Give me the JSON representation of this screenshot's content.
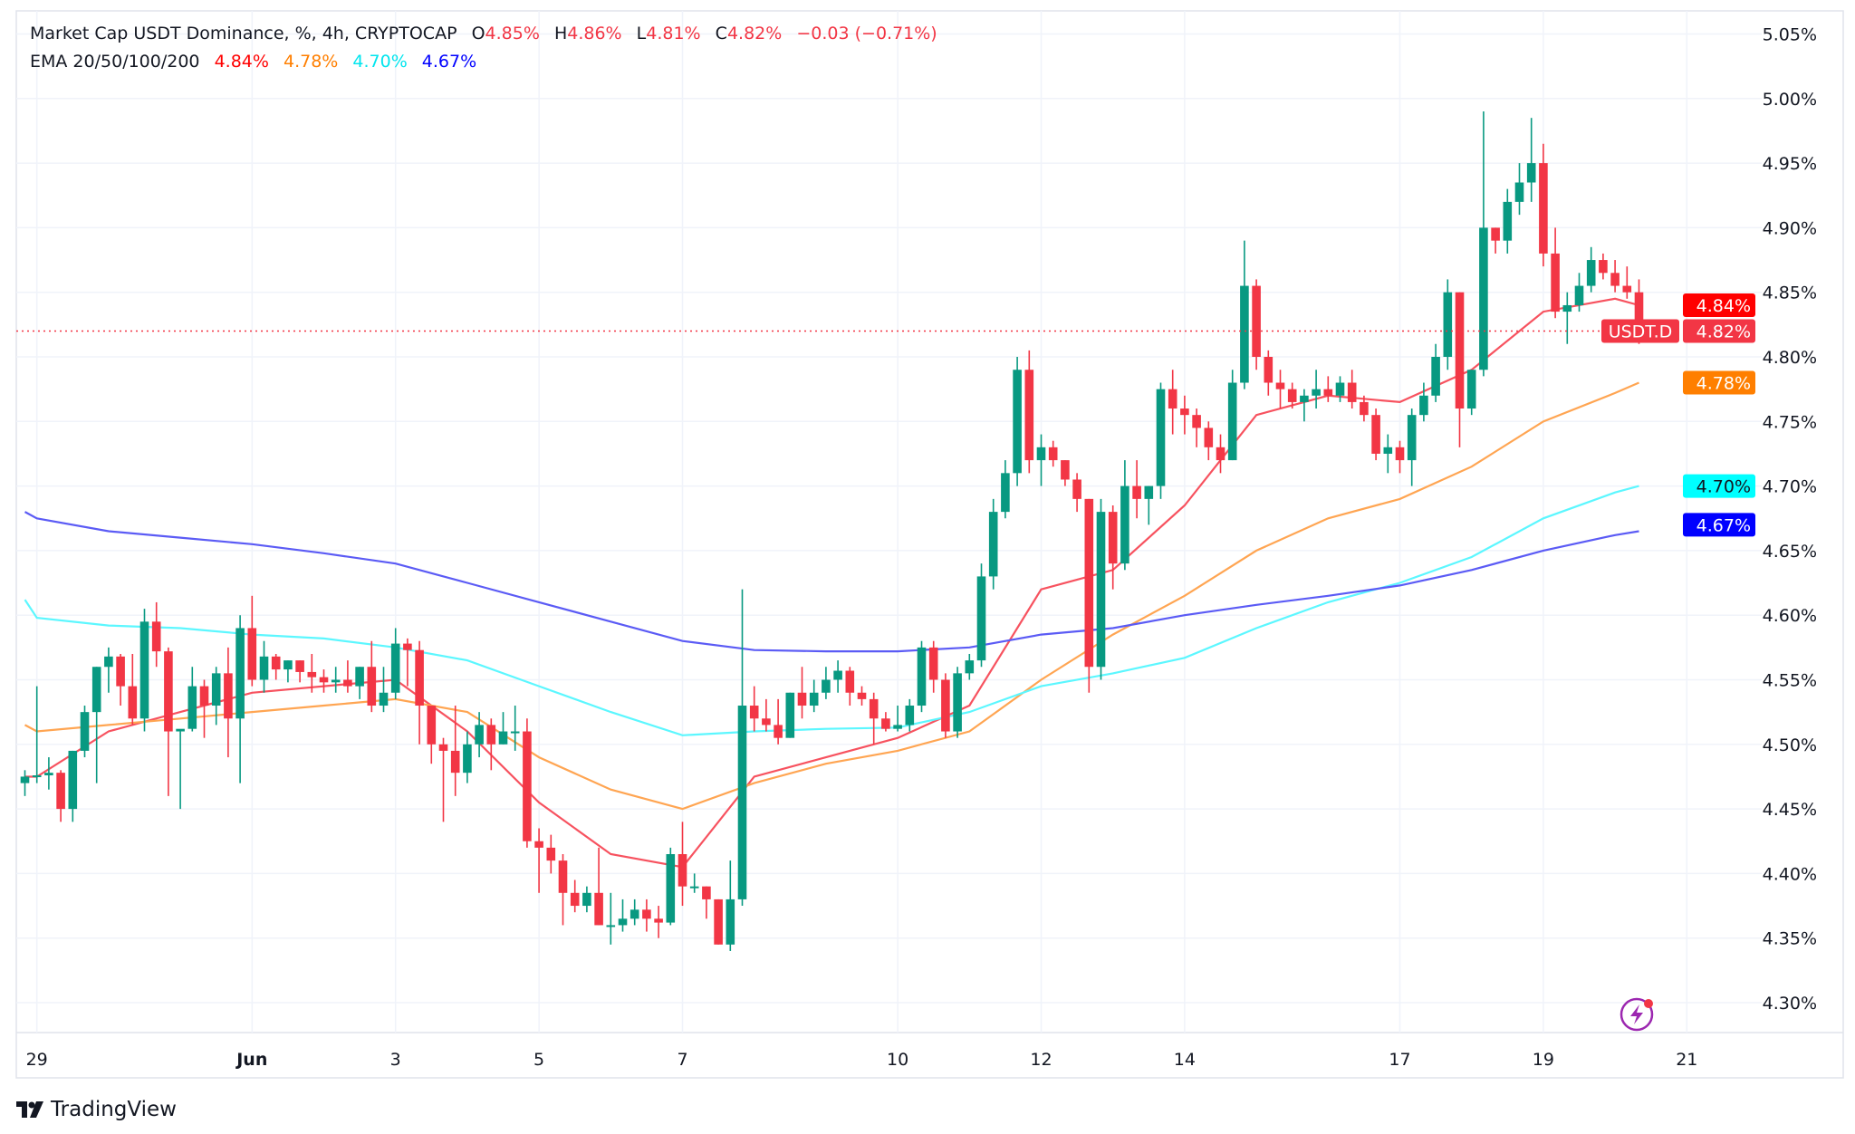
{
  "header": {
    "title": "Market Cap USDT Dominance, %, 4h, CRYPTOCAP",
    "ohlc": {
      "o_label": "O",
      "o": "4.85%",
      "h_label": "H",
      "h": "4.86%",
      "l_label": "L",
      "l": "4.81%",
      "c_label": "C",
      "c": "4.82%",
      "change": "−0.03 (−0.71%)"
    },
    "ema_label": "EMA 20/50/100/200",
    "ema_values": [
      "4.84%",
      "4.78%",
      "4.70%",
      "4.67%"
    ]
  },
  "colors": {
    "up": "#089981",
    "down": "#f23645",
    "ema20": "#f7525f",
    "ema50": "#ffa552",
    "ema100": "#5cf7ff",
    "ema200": "#5b5bf5",
    "ema20_tag": "#ff0000",
    "ema50_tag": "#ff7f00",
    "ema100_tag": "#00ffff",
    "ema200_tag": "#0000ff",
    "last_tag": "#f23645"
  },
  "branding": {
    "logo_text": "TradingView"
  },
  "icons": {
    "replay": "lightning-icon"
  },
  "chart_data": {
    "type": "candlestick",
    "symbol": "USDT.D",
    "interval": "4h",
    "ylim": [
      4.28,
      5.06
    ],
    "yticks": [
      "4.30%",
      "4.35%",
      "4.40%",
      "4.45%",
      "4.50%",
      "4.55%",
      "4.60%",
      "4.65%",
      "4.70%",
      "4.75%",
      "4.80%",
      "4.85%",
      "4.90%",
      "4.95%",
      "5.00%",
      "5.05%"
    ],
    "xticks": [
      {
        "t": "05-29 00:00",
        "label": "29"
      },
      {
        "t": "06-01 00:00",
        "label": "Jun"
      },
      {
        "t": "06-03 00:00",
        "label": "3"
      },
      {
        "t": "06-05 00:00",
        "label": "5"
      },
      {
        "t": "06-07 00:00",
        "label": "7"
      },
      {
        "t": "06-10 00:00",
        "label": "10"
      },
      {
        "t": "06-12 00:00",
        "label": "12"
      },
      {
        "t": "06-14 00:00",
        "label": "14"
      },
      {
        "t": "06-17 00:00",
        "label": "17"
      },
      {
        "t": "06-19 00:00",
        "label": "19"
      },
      {
        "t": "06-21 00:00",
        "label": "21"
      }
    ],
    "last_price": {
      "label": "USDT.D",
      "value": "4.82%",
      "v": 4.82
    },
    "price_tags": [
      {
        "name": "ema20",
        "value": "4.84%",
        "v": 4.84
      },
      {
        "name": "ema50",
        "value": "4.78%",
        "v": 4.78
      },
      {
        "name": "ema100",
        "value": "4.70%",
        "v": 4.7
      },
      {
        "name": "ema200",
        "value": "4.67%",
        "v": 4.67
      }
    ],
    "first_time": "05-28 20:00",
    "candles_ohlc": [
      [
        4.47,
        4.48,
        4.46,
        4.475
      ],
      [
        4.475,
        4.545,
        4.47,
        4.476
      ],
      [
        4.476,
        4.49,
        4.465,
        4.478
      ],
      [
        4.478,
        4.48,
        4.44,
        4.45
      ],
      [
        4.45,
        4.495,
        4.44,
        4.495
      ],
      [
        4.495,
        4.53,
        4.49,
        4.525
      ],
      [
        4.525,
        4.56,
        4.47,
        4.56
      ],
      [
        4.56,
        4.575,
        4.54,
        4.568
      ],
      [
        4.568,
        4.57,
        4.53,
        4.545
      ],
      [
        4.545,
        4.57,
        4.515,
        4.52
      ],
      [
        4.52,
        4.605,
        4.51,
        4.595
      ],
      [
        4.595,
        4.61,
        4.56,
        4.572
      ],
      [
        4.572,
        4.575,
        4.46,
        4.51
      ],
      [
        4.51,
        4.51,
        4.45,
        4.512
      ],
      [
        4.512,
        4.56,
        4.51,
        4.545
      ],
      [
        4.545,
        4.55,
        4.505,
        4.53
      ],
      [
        4.53,
        4.56,
        4.515,
        4.555
      ],
      [
        4.555,
        4.575,
        4.49,
        4.52
      ],
      [
        4.52,
        4.6,
        4.47,
        4.59
      ],
      [
        4.59,
        4.615,
        4.545,
        4.55
      ],
      [
        4.55,
        4.58,
        4.54,
        4.568
      ],
      [
        4.568,
        4.57,
        4.55,
        4.558
      ],
      [
        4.558,
        4.565,
        4.548,
        4.565
      ],
      [
        4.565,
        4.565,
        4.548,
        4.556
      ],
      [
        4.556,
        4.57,
        4.54,
        4.552
      ],
      [
        4.552,
        4.558,
        4.54,
        4.548
      ],
      [
        4.548,
        4.56,
        4.54,
        4.55
      ],
      [
        4.55,
        4.565,
        4.54,
        4.545
      ],
      [
        4.545,
        4.56,
        4.535,
        4.56
      ],
      [
        4.56,
        4.58,
        4.525,
        4.53
      ],
      [
        4.53,
        4.56,
        4.525,
        4.54
      ],
      [
        4.54,
        4.59,
        4.535,
        4.578
      ],
      [
        4.578,
        4.582,
        4.545,
        4.573
      ],
      [
        4.573,
        4.58,
        4.5,
        4.53
      ],
      [
        4.53,
        4.53,
        4.485,
        4.5
      ],
      [
        4.5,
        4.505,
        4.44,
        4.495
      ],
      [
        4.495,
        4.53,
        4.46,
        4.478
      ],
      [
        4.478,
        4.51,
        4.47,
        4.5
      ],
      [
        4.5,
        4.525,
        4.49,
        4.515
      ],
      [
        4.515,
        4.52,
        4.48,
        4.5
      ],
      [
        4.5,
        4.525,
        4.5,
        4.51
      ],
      [
        4.51,
        4.53,
        4.495,
        4.51
      ],
      [
        4.51,
        4.52,
        4.42,
        4.425
      ],
      [
        4.425,
        4.435,
        4.385,
        4.42
      ],
      [
        4.42,
        4.43,
        4.4,
        4.41
      ],
      [
        4.41,
        4.415,
        4.36,
        4.385
      ],
      [
        4.385,
        4.395,
        4.37,
        4.375
      ],
      [
        4.375,
        4.39,
        4.37,
        4.385
      ],
      [
        4.385,
        4.42,
        4.36,
        4.36
      ],
      [
        4.36,
        4.385,
        4.345,
        4.36
      ],
      [
        4.36,
        4.38,
        4.355,
        4.365
      ],
      [
        4.365,
        4.38,
        4.36,
        4.372
      ],
      [
        4.372,
        4.38,
        4.355,
        4.365
      ],
      [
        4.365,
        4.375,
        4.35,
        4.362
      ],
      [
        4.362,
        4.42,
        4.36,
        4.415
      ],
      [
        4.415,
        4.44,
        4.375,
        4.39
      ],
      [
        4.39,
        4.4,
        4.385,
        4.39
      ],
      [
        4.39,
        4.39,
        4.365,
        4.38
      ],
      [
        4.38,
        4.38,
        4.345,
        4.345
      ],
      [
        4.345,
        4.41,
        4.34,
        4.38
      ],
      [
        4.38,
        4.62,
        4.375,
        4.53
      ],
      [
        4.53,
        4.545,
        4.51,
        4.52
      ],
      [
        4.52,
        4.535,
        4.51,
        4.515
      ],
      [
        4.515,
        4.535,
        4.5,
        4.505
      ],
      [
        4.505,
        4.54,
        4.505,
        4.54
      ],
      [
        4.54,
        4.56,
        4.52,
        4.53
      ],
      [
        4.53,
        4.55,
        4.525,
        4.54
      ],
      [
        4.54,
        4.56,
        4.535,
        4.55
      ],
      [
        4.55,
        4.565,
        4.54,
        4.557
      ],
      [
        4.557,
        4.56,
        4.53,
        4.54
      ],
      [
        4.54,
        4.545,
        4.53,
        4.535
      ],
      [
        4.535,
        4.54,
        4.5,
        4.52
      ],
      [
        4.52,
        4.525,
        4.51,
        4.512
      ],
      [
        4.512,
        4.53,
        4.51,
        4.515
      ],
      [
        4.515,
        4.535,
        4.51,
        4.53
      ],
      [
        4.53,
        4.58,
        4.525,
        4.575
      ],
      [
        4.575,
        4.58,
        4.54,
        4.55
      ],
      [
        4.55,
        4.555,
        4.505,
        4.51
      ],
      [
        4.51,
        4.56,
        4.505,
        4.555
      ],
      [
        4.555,
        4.57,
        4.55,
        4.565
      ],
      [
        4.565,
        4.64,
        4.56,
        4.63
      ],
      [
        4.63,
        4.69,
        4.62,
        4.68
      ],
      [
        4.68,
        4.72,
        4.675,
        4.71
      ],
      [
        4.71,
        4.8,
        4.7,
        4.79
      ],
      [
        4.79,
        4.805,
        4.71,
        4.72
      ],
      [
        4.72,
        4.74,
        4.7,
        4.73
      ],
      [
        4.73,
        4.735,
        4.715,
        4.72
      ],
      [
        4.72,
        4.72,
        4.7,
        4.705
      ],
      [
        4.705,
        4.71,
        4.68,
        4.69
      ],
      [
        4.69,
        4.69,
        4.54,
        4.56
      ],
      [
        4.56,
        4.69,
        4.55,
        4.68
      ],
      [
        4.68,
        4.685,
        4.62,
        4.64
      ],
      [
        4.64,
        4.72,
        4.635,
        4.7
      ],
      [
        4.7,
        4.72,
        4.675,
        4.69
      ],
      [
        4.69,
        4.7,
        4.67,
        4.7
      ],
      [
        4.7,
        4.78,
        4.69,
        4.775
      ],
      [
        4.775,
        4.79,
        4.74,
        4.76
      ],
      [
        4.76,
        4.77,
        4.74,
        4.755
      ],
      [
        4.755,
        4.76,
        4.73,
        4.745
      ],
      [
        4.745,
        4.75,
        4.72,
        4.73
      ],
      [
        4.73,
        4.74,
        4.71,
        4.72
      ],
      [
        4.72,
        4.79,
        4.72,
        4.78
      ],
      [
        4.78,
        4.89,
        4.775,
        4.855
      ],
      [
        4.855,
        4.86,
        4.79,
        4.8
      ],
      [
        4.8,
        4.805,
        4.77,
        4.78
      ],
      [
        4.78,
        4.79,
        4.76,
        4.775
      ],
      [
        4.775,
        4.78,
        4.76,
        4.765
      ],
      [
        4.765,
        4.775,
        4.75,
        4.77
      ],
      [
        4.77,
        4.79,
        4.76,
        4.775
      ],
      [
        4.775,
        4.785,
        4.765,
        4.77
      ],
      [
        4.77,
        4.785,
        4.765,
        4.78
      ],
      [
        4.78,
        4.79,
        4.76,
        4.765
      ],
      [
        4.765,
        4.77,
        4.75,
        4.755
      ],
      [
        4.755,
        4.76,
        4.72,
        4.725
      ],
      [
        4.725,
        4.74,
        4.71,
        4.73
      ],
      [
        4.73,
        4.735,
        4.71,
        4.72
      ],
      [
        4.72,
        4.76,
        4.7,
        4.755
      ],
      [
        4.755,
        4.78,
        4.75,
        4.77
      ],
      [
        4.77,
        4.81,
        4.765,
        4.8
      ],
      [
        4.8,
        4.86,
        4.79,
        4.85
      ],
      [
        4.85,
        4.85,
        4.73,
        4.76
      ],
      [
        4.76,
        4.79,
        4.755,
        4.79
      ],
      [
        4.79,
        4.99,
        4.785,
        4.9
      ],
      [
        4.9,
        4.9,
        4.88,
        4.89
      ],
      [
        4.89,
        4.93,
        4.88,
        4.92
      ],
      [
        4.92,
        4.95,
        4.91,
        4.935
      ],
      [
        4.935,
        4.985,
        4.92,
        4.95
      ],
      [
        4.95,
        4.965,
        4.87,
        4.88
      ],
      [
        4.88,
        4.9,
        4.83,
        4.835
      ],
      [
        4.835,
        4.85,
        4.81,
        4.84
      ],
      [
        4.84,
        4.865,
        4.835,
        4.855
      ],
      [
        4.855,
        4.885,
        4.85,
        4.875
      ],
      [
        4.875,
        4.88,
        4.86,
        4.865
      ],
      [
        4.865,
        4.875,
        4.85,
        4.855
      ],
      [
        4.855,
        4.87,
        4.845,
        4.85
      ],
      [
        4.85,
        4.86,
        4.81,
        4.82
      ]
    ],
    "ema_times": [
      "05-28 20:00",
      "05-29 00:00",
      "05-30 00:00",
      "05-31 00:00",
      "06-01 00:00",
      "06-02 00:00",
      "06-03 00:00",
      "06-04 00:00",
      "06-05 00:00",
      "06-06 00:00",
      "06-07 00:00",
      "06-08 00:00",
      "06-09 00:00",
      "06-10 00:00",
      "06-11 00:00",
      "06-12 00:00",
      "06-13 00:00",
      "06-14 00:00",
      "06-15 00:00",
      "06-16 00:00",
      "06-17 00:00",
      "06-18 00:00",
      "06-19 00:00",
      "06-20 00:00",
      "06-20 08:00"
    ],
    "series": [
      {
        "name": "EMA 20",
        "key": "ema20",
        "values": [
          4.475,
          4.475,
          4.51,
          4.525,
          4.54,
          4.545,
          4.55,
          4.51,
          4.455,
          4.415,
          4.405,
          4.475,
          4.49,
          4.505,
          4.53,
          4.62,
          4.635,
          4.685,
          4.755,
          4.77,
          4.765,
          4.79,
          4.835,
          4.845,
          4.84
        ]
      },
      {
        "name": "EMA 50",
        "key": "ema50",
        "values": [
          4.515,
          4.51,
          4.515,
          4.52,
          4.525,
          4.53,
          4.535,
          4.525,
          4.49,
          4.465,
          4.45,
          4.47,
          4.485,
          4.495,
          4.51,
          4.55,
          4.585,
          4.615,
          4.65,
          4.675,
          4.69,
          4.715,
          4.75,
          4.772,
          4.78
        ]
      },
      {
        "name": "EMA 100",
        "key": "ema100",
        "values": [
          4.612,
          4.598,
          4.592,
          4.59,
          4.585,
          4.582,
          4.575,
          4.565,
          4.545,
          4.525,
          4.507,
          4.51,
          4.512,
          4.513,
          4.525,
          4.545,
          4.555,
          4.567,
          4.59,
          4.61,
          4.625,
          4.645,
          4.675,
          4.695,
          4.7
        ]
      },
      {
        "name": "EMA 200",
        "key": "ema200",
        "values": [
          4.68,
          4.675,
          4.665,
          4.66,
          4.655,
          4.648,
          4.64,
          4.625,
          4.61,
          4.595,
          4.58,
          4.573,
          4.572,
          4.572,
          4.575,
          4.585,
          4.59,
          4.6,
          4.608,
          4.615,
          4.623,
          4.635,
          4.65,
          4.662,
          4.665
        ]
      }
    ],
    "grid": true,
    "legend": "top-left"
  }
}
